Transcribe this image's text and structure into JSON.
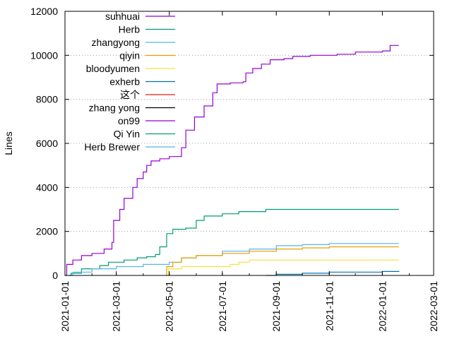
{
  "chart_data": {
    "type": "line",
    "ylabel": "Lines",
    "xlabel": "",
    "ylim": [
      0,
      12000
    ],
    "yticks": [
      "0",
      "2000",
      "4000",
      "6000",
      "8000",
      "10000",
      "12000"
    ],
    "yticks_values": [
      0,
      2000,
      4000,
      6000,
      8000,
      10000,
      12000
    ],
    "xlim": [
      "2021-01-01",
      "2022-03-01"
    ],
    "xticks": [
      "2021-01-01",
      "2021-03-01",
      "2021-05-01",
      "2021-07-01",
      "2021-09-01",
      "2021-11-01",
      "2022-01-01",
      "2022-03-01"
    ],
    "grid": "horizontal dotted",
    "legend_position": "top-left",
    "series": [
      {
        "name": "sunhuai",
        "color": "#9400d3",
        "points": [
          [
            "2021-01-01",
            0
          ],
          [
            "2021-01-03",
            500
          ],
          [
            "2021-01-10",
            700
          ],
          [
            "2021-01-20",
            900
          ],
          [
            "2021-02-01",
            1000
          ],
          [
            "2021-02-15",
            1200
          ],
          [
            "2021-02-24",
            1500
          ],
          [
            "2021-02-26",
            2500
          ],
          [
            "2021-03-05",
            3000
          ],
          [
            "2021-03-10",
            3500
          ],
          [
            "2021-03-20",
            4000
          ],
          [
            "2021-03-25",
            4400
          ],
          [
            "2021-04-01",
            4700
          ],
          [
            "2021-04-05",
            5000
          ],
          [
            "2021-04-10",
            5200
          ],
          [
            "2021-04-20",
            5300
          ],
          [
            "2021-05-01",
            5400
          ],
          [
            "2021-05-15",
            5800
          ],
          [
            "2021-05-20",
            6600
          ],
          [
            "2021-05-30",
            7200
          ],
          [
            "2021-06-10",
            7700
          ],
          [
            "2021-06-20",
            8300
          ],
          [
            "2021-06-25",
            8700
          ],
          [
            "2021-07-10",
            8750
          ],
          [
            "2021-07-25",
            8800
          ],
          [
            "2021-07-28",
            9200
          ],
          [
            "2021-08-05",
            9400
          ],
          [
            "2021-08-15",
            9600
          ],
          [
            "2021-08-25",
            9800
          ],
          [
            "2021-09-10",
            9850
          ],
          [
            "2021-09-20",
            9950
          ],
          [
            "2021-10-10",
            10000
          ],
          [
            "2021-11-10",
            10050
          ],
          [
            "2021-12-01",
            10150
          ],
          [
            "2022-01-01",
            10200
          ],
          [
            "2022-01-10",
            10450
          ],
          [
            "2022-01-20",
            10450
          ]
        ]
      },
      {
        "name": "Herb",
        "color": "#009e73",
        "points": [
          [
            "2021-01-06",
            0
          ],
          [
            "2021-01-08",
            100
          ],
          [
            "2021-01-20",
            300
          ],
          [
            "2021-02-10",
            450
          ],
          [
            "2021-02-20",
            600
          ],
          [
            "2021-03-10",
            700
          ],
          [
            "2021-03-25",
            800
          ],
          [
            "2021-04-05",
            850
          ],
          [
            "2021-04-15",
            950
          ],
          [
            "2021-04-20",
            1300
          ],
          [
            "2021-04-28",
            1900
          ],
          [
            "2021-05-05",
            2100
          ],
          [
            "2021-05-20",
            2150
          ],
          [
            "2021-06-01",
            2500
          ],
          [
            "2021-06-10",
            2700
          ],
          [
            "2021-07-01",
            2800
          ],
          [
            "2021-07-20",
            2900
          ],
          [
            "2021-08-20",
            3000
          ],
          [
            "2022-01-20",
            3000
          ]
        ]
      },
      {
        "name": "zhangyong",
        "color": "#56b4e9",
        "points": [
          [
            "2021-01-06",
            0
          ],
          [
            "2021-01-10",
            150
          ],
          [
            "2021-02-01",
            300
          ],
          [
            "2021-03-01",
            400
          ],
          [
            "2021-04-01",
            500
          ],
          [
            "2021-05-01",
            600
          ],
          [
            "2021-05-15",
            800
          ],
          [
            "2021-06-01",
            900
          ],
          [
            "2021-07-01",
            1100
          ],
          [
            "2021-08-01",
            1200
          ],
          [
            "2021-09-01",
            1350
          ],
          [
            "2021-10-01",
            1400
          ],
          [
            "2021-11-01",
            1450
          ],
          [
            "2022-01-20",
            1450
          ]
        ]
      },
      {
        "name": "qiyin",
        "color": "#e69f00",
        "points": [
          [
            "2021-04-27",
            0
          ],
          [
            "2021-04-28",
            400
          ],
          [
            "2021-05-05",
            600
          ],
          [
            "2021-05-15",
            800
          ],
          [
            "2021-06-01",
            900
          ],
          [
            "2021-07-01",
            1000
          ],
          [
            "2021-08-01",
            1100
          ],
          [
            "2021-09-01",
            1200
          ],
          [
            "2021-10-01",
            1250
          ],
          [
            "2021-11-01",
            1300
          ],
          [
            "2022-01-20",
            1300
          ]
        ]
      },
      {
        "name": "bloodyumen",
        "color": "#f0e442",
        "points": [
          [
            "2021-04-28",
            0
          ],
          [
            "2021-04-30",
            300
          ],
          [
            "2021-05-15",
            400
          ],
          [
            "2021-07-10",
            500
          ],
          [
            "2021-07-20",
            600
          ],
          [
            "2021-08-01",
            700
          ],
          [
            "2022-01-20",
            700
          ]
        ]
      },
      {
        "name": "exherb",
        "color": "#0072b2",
        "points": [
          [
            "2021-08-20",
            0
          ],
          [
            "2021-09-01",
            50
          ],
          [
            "2021-10-01",
            100
          ],
          [
            "2021-11-01",
            150
          ],
          [
            "2022-01-01",
            180
          ],
          [
            "2022-01-20",
            200
          ]
        ]
      },
      {
        "name": "这个",
        "color": "#e51e10",
        "points": []
      },
      {
        "name": "zhang yong",
        "color": "#000000",
        "points": []
      },
      {
        "name": "on99",
        "color": "#9400d3",
        "points": []
      },
      {
        "name": "Qi Yin",
        "color": "#009e73",
        "points": []
      },
      {
        "name": "Herb Brewer",
        "color": "#56b4e9",
        "points": []
      }
    ]
  }
}
